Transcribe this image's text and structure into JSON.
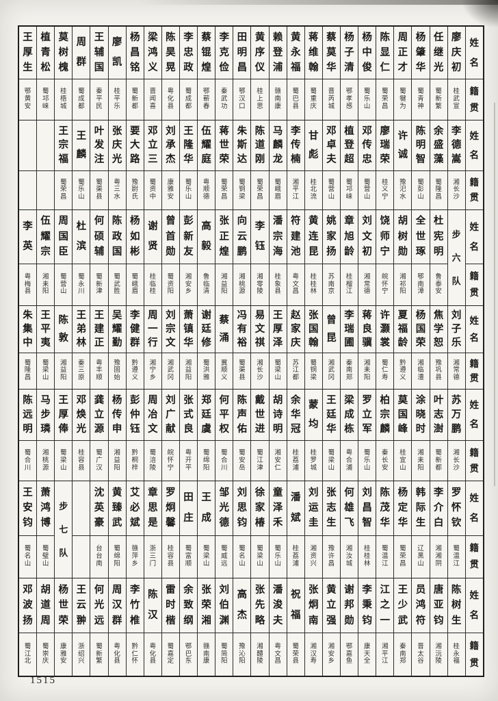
{
  "page": {
    "number": "1515"
  },
  "table": {
    "header": {
      "name_label": "姓名",
      "place_label": "籍贯"
    },
    "bands": [
      {
        "entries": [
          {
            "name": "王厚生",
            "place": "鄂黄安"
          },
          {
            "name": "植青松",
            "place": "蜀邛崃"
          },
          {
            "name": "莫树槐",
            "place": "桂梧城"
          },
          {
            "name": "周群",
            "place": "蜀成都"
          },
          {
            "name": "王辅国",
            "place": "秦平民"
          },
          {
            "name": "廖凯",
            "place": "桂平乐"
          },
          {
            "name": "杨昌铭",
            "place": "蜀新都"
          },
          {
            "name": "梁鸿义",
            "place": "晋闻喜"
          },
          {
            "name": "陈昊晃",
            "place": "粤化县"
          },
          {
            "name": "李忠政",
            "place": "蜀成都"
          },
          {
            "name": "蔡锟煌",
            "place": "鄂蕲春"
          },
          {
            "name": "李克俭",
            "place": "秦武功"
          },
          {
            "name": "田明昌",
            "place": "鄂汉口"
          },
          {
            "name": "黄序仪",
            "place": "桂上思"
          },
          {
            "name": "赖登浦",
            "place": "赣南康"
          },
          {
            "name": "黄永福",
            "place": "蜀巴县"
          },
          {
            "name": "蒋维翰",
            "place": "蜀重庆"
          },
          {
            "name": "蔡莫华",
            "place": "晋芮城"
          },
          {
            "name": "杨子清",
            "place": "鄂孝感"
          },
          {
            "name": "杨中俊",
            "place": "蜀乐山"
          },
          {
            "name": "陈显仁",
            "place": "蜀荣昌"
          },
          {
            "name": "周正才",
            "place": "蜀犍为"
          },
          {
            "name": "杨肇华",
            "place": "蜀青神"
          },
          {
            "name": "任继光",
            "place": "蜀新繁"
          },
          {
            "name": "廖庆初",
            "place": "桂武宣"
          }
        ]
      },
      {
        "entries": [
          {
            "name": "",
            "place": ""
          },
          {
            "name": "",
            "place": ""
          },
          {
            "name": "王宗福",
            "place": "蜀荣昌"
          },
          {
            "name": "王麟",
            "place": "蜀乐山"
          },
          {
            "name": "叶发注",
            "place": "蜀渠县"
          },
          {
            "name": "张庆光",
            "place": "粤三水"
          },
          {
            "name": "要大路",
            "place": "豫尉氏"
          },
          {
            "name": "邓立三",
            "place": "蜀资中"
          },
          {
            "name": "刘承杰",
            "place": "康雅安"
          },
          {
            "name": "王隆华",
            "place": "蜀乐山"
          },
          {
            "name": "伍耀庭",
            "place": "粤顺德"
          },
          {
            "name": "蒋世荣",
            "place": "蜀荣昌"
          },
          {
            "name": "朱斯达",
            "place": "蜀铜梁"
          },
          {
            "name": "陈道刚",
            "place": "蜀荣昌"
          },
          {
            "name": "马麟龙",
            "place": "蜀峨眉"
          },
          {
            "name": "李传楠",
            "place": "湘平江"
          },
          {
            "name": "甘彪",
            "place": "桂北流"
          },
          {
            "name": "邓卓夫",
            "place": "蜀营山"
          },
          {
            "name": "植登超",
            "place": "蜀邛崃"
          },
          {
            "name": "邓传忠",
            "place": "蜀营山"
          },
          {
            "name": "廖瑞荣",
            "place": "桂义宁"
          },
          {
            "name": "许诚",
            "place": "豫汜水"
          },
          {
            "name": "陈明智",
            "place": "蜀彭山"
          },
          {
            "name": "余盛藻",
            "place": "蜀隆昌"
          },
          {
            "name": "李德嵩",
            "place": "湘长沙"
          }
        ]
      },
      {
        "entries": [
          {
            "name": "李英",
            "place": "粤梅县"
          },
          {
            "name": "伍耀宗",
            "place": "湘耒阳"
          },
          {
            "name": "周国臣",
            "place": "蜀营山"
          },
          {
            "name": "杜滨",
            "place": "蜀永川"
          },
          {
            "name": "何硕辅",
            "place": "蜀新津"
          },
          {
            "name": "陈政国",
            "place": "蜀武胜"
          },
          {
            "name": "杨如彬",
            "place": "蜀峨眉"
          },
          {
            "name": "谢贤",
            "place": "桂临桂"
          },
          {
            "name": "曾首勋",
            "place": "蜀资阳"
          },
          {
            "name": "彭新友",
            "place": "湘安乡"
          },
          {
            "name": "高毅",
            "place": "鲁临清"
          },
          {
            "name": "张正煌",
            "place": "湘益阳"
          },
          {
            "name": "向云鹏",
            "place": "湘桃源"
          },
          {
            "name": "李钰",
            "place": "湘零陵"
          },
          {
            "name": "潘宗海",
            "place": "桂象县"
          },
          {
            "name": "符建池",
            "place": "粤文昌"
          },
          {
            "name": "黄连昆",
            "place": "桂桂林"
          },
          {
            "name": "姚家扬",
            "place": "苏南京"
          },
          {
            "name": "章旭龄",
            "place": "桂榴江"
          },
          {
            "name": "刘文初",
            "place": "湘常德"
          },
          {
            "name": "饶师宁",
            "place": "皖怀宁"
          },
          {
            "name": "胡树勋",
            "place": "湘祁阳"
          },
          {
            "name": "全世琢",
            "place": "鄂南漳"
          },
          {
            "name": "杜宪明",
            "place": "鲁泰安"
          },
          {
            "unit": "步六队"
          }
        ]
      },
      {
        "entries": [
          {
            "name": "朱集中",
            "place": "蜀隆昌"
          },
          {
            "name": "王平夷",
            "place": "蜀梁山"
          },
          {
            "name": "陈敦",
            "place": "湘益阳"
          },
          {
            "name": "王弟林",
            "place": "秦三原"
          },
          {
            "name": "王建正",
            "place": "粤丰顺"
          },
          {
            "name": "吴耀勤",
            "place": "豫固始"
          },
          {
            "name": "李健群",
            "place": "黔遵义"
          },
          {
            "name": "周一行",
            "place": "湘宁乡"
          },
          {
            "name": "刘宗文",
            "place": "湘武冈"
          },
          {
            "name": "萧镇华",
            "place": "湘益阳"
          },
          {
            "name": "谢廷修",
            "place": "蜀洪雅"
          },
          {
            "name": "蔡涌",
            "place": "冀顺义"
          },
          {
            "name": "冯有裕",
            "place": "蜀渠县"
          },
          {
            "name": "易文祺",
            "place": "湘长沙"
          },
          {
            "name": "王厚泽",
            "place": "蜀梁山"
          },
          {
            "name": "赵家庆",
            "place": "苏江都"
          },
          {
            "name": "张国翰",
            "place": "蜀铜梁"
          },
          {
            "name": "曾昆",
            "place": "湘武冈"
          },
          {
            "name": "李瑞圃",
            "place": "秦南郑"
          },
          {
            "name": "蒋良骥",
            "place": "湘耒阳"
          },
          {
            "name": "许灏裳",
            "place": "蜀仁寿"
          },
          {
            "name": "夏福龄",
            "place": "黔遵义"
          },
          {
            "name": "杨国荣",
            "place": "湘临澧"
          },
          {
            "name": "焦学恕",
            "place": "豫巩县"
          },
          {
            "name": "刘子乐",
            "place": "湘常德"
          }
        ]
      },
      {
        "entries": [
          {
            "name": "陈远明",
            "place": "蜀合川"
          },
          {
            "name": "马步璘",
            "place": "湘桃源"
          },
          {
            "name": "王厚俸",
            "place": "蜀梁山"
          },
          {
            "name": "邓焕光",
            "place": "桂容县"
          },
          {
            "name": "龚立源",
            "place": "蜀广汉"
          },
          {
            "name": "杨传申",
            "place": "湘益阳"
          },
          {
            "name": "彭仲钰",
            "place": "黔桐梓"
          },
          {
            "name": "周冶文",
            "place": "蜀涪陵"
          },
          {
            "name": "刘广献",
            "place": "皖怀宁"
          },
          {
            "name": "张式良",
            "place": "粤开平"
          },
          {
            "name": "郑廷虞",
            "place": "蜀绵阳"
          },
          {
            "name": "何平权",
            "place": "蜀合川"
          },
          {
            "name": "陈声佑",
            "place": "蜀安岳"
          },
          {
            "name": "戴世进",
            "place": "蜀江津"
          },
          {
            "name": "胡诗明",
            "place": "湘安仁"
          },
          {
            "name": "余华冠",
            "place": "桂荔浦"
          },
          {
            "name": "蒙均",
            "place": "桂罗城"
          },
          {
            "name": "王廷华",
            "place": "蜀梁山"
          },
          {
            "name": "梁成栋",
            "place": "粤合浦"
          },
          {
            "name": "罗立军",
            "place": "蜀乐山"
          },
          {
            "name": "柏宗麟",
            "place": "秦长安"
          },
          {
            "name": "莫国峰",
            "place": "桂宜山"
          },
          {
            "name": "涂晓时",
            "place": "湘耒阳"
          },
          {
            "name": "叶志澍",
            "place": "蜀新都"
          },
          {
            "name": "苏万鹏",
            "place": "湘长沙"
          }
        ]
      },
      {
        "entries": [
          {
            "name": "王安钧",
            "place": "蜀名山"
          },
          {
            "name": "萧鸿博",
            "place": "蜀璧山"
          },
          {
            "unit": "步七队"
          },
          {
            "name": "",
            "place": ""
          },
          {
            "name": "沈英豪",
            "place": "台台南"
          },
          {
            "name": "黄臻武",
            "place": "蜀绵阳"
          },
          {
            "name": "艾必斌",
            "place": "赣萍乡"
          },
          {
            "name": "章思是",
            "place": "浙三门"
          },
          {
            "name": "罗炯馨",
            "place": "桂容县"
          },
          {
            "name": "田庄",
            "place": "蜀富顺"
          },
          {
            "name": "王成",
            "place": "蜀梁山"
          },
          {
            "name": "邹光德",
            "place": "蜀威远"
          },
          {
            "name": "刘思钧",
            "place": "蜀名山"
          },
          {
            "name": "徐家椿",
            "place": "蜀梁山"
          },
          {
            "name": "童泽禾",
            "place": "蜀乐山"
          },
          {
            "name": "潘斌",
            "place": "桂荔浦"
          },
          {
            "name": "刘运圭",
            "place": "湘资兴"
          },
          {
            "name": "张志生",
            "place": "豫许昌"
          },
          {
            "name": "何雄飞",
            "place": "湘汝城"
          },
          {
            "name": "刘昌智",
            "place": "桂桂林"
          },
          {
            "name": "陈茂华",
            "place": "蜀温江"
          },
          {
            "name": "杨定华",
            "place": "蜀荣昌"
          },
          {
            "name": "韩际生",
            "place": "辽黑山"
          },
          {
            "name": "李介白",
            "place": "湘湘阴"
          },
          {
            "name": "罗怀钦",
            "place": "蜀温江"
          }
        ]
      },
      {
        "entries": [
          {
            "name": "邓波扬",
            "place": "蜀江北"
          },
          {
            "name": "胡道周",
            "place": "蜀崇庆"
          },
          {
            "name": "杨世荣",
            "place": "康雅安"
          },
          {
            "name": "王云翀",
            "place": "浙绍兴"
          },
          {
            "name": "何光远",
            "place": "蜀新繁"
          },
          {
            "name": "周汉群",
            "place": "粤化县"
          },
          {
            "name": "李竹椎",
            "place": "黔仁怀"
          },
          {
            "name": "陈汉",
            "place": "粤化县"
          },
          {
            "name": "雷时楷",
            "place": "蜀嘉定"
          },
          {
            "name": "余致纲",
            "place": "鄂巴东"
          },
          {
            "name": "张荣湘",
            "place": "赣南康"
          },
          {
            "name": "刘伯渊",
            "place": "蜀简阳"
          },
          {
            "name": "高杰",
            "place": "豫沁阳"
          },
          {
            "name": "张先略",
            "place": "湘醴陵"
          },
          {
            "name": "潘浚夫",
            "place": "粤文昌"
          },
          {
            "name": "祝福",
            "place": "蜀荣县"
          },
          {
            "name": "张炯南",
            "place": "湘汉寿"
          },
          {
            "name": "黄立强",
            "place": "湘安乡"
          },
          {
            "name": "谢邦勋",
            "place": "鄂嘉鱼"
          },
          {
            "name": "李秉钧",
            "place": "康天全"
          },
          {
            "name": "江之一",
            "place": "湘平江"
          },
          {
            "name": "王少武",
            "place": "秦南郑"
          },
          {
            "name": "员鸿符",
            "place": "晋太谷"
          },
          {
            "name": "唐亚钧",
            "place": "湘沅陵"
          },
          {
            "name": "陈树生",
            "place": "桂永福"
          }
        ]
      }
    ]
  }
}
